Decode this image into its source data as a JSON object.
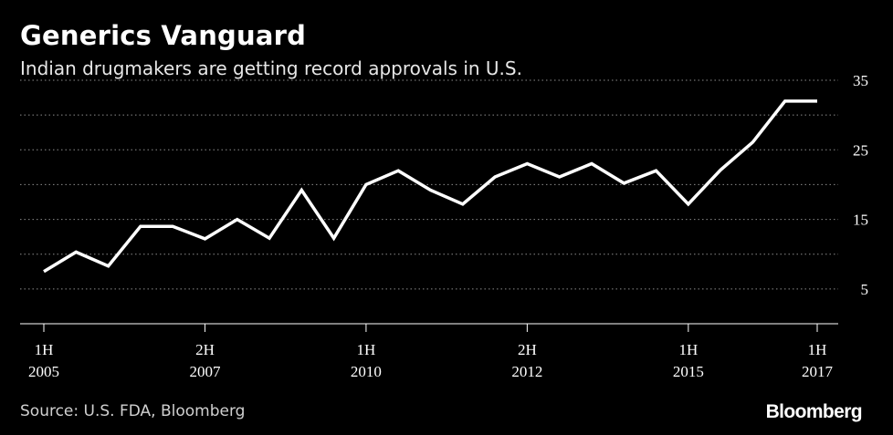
{
  "title": "Generics Vanguard",
  "subtitle": "Indian drugmakers are getting record approvals in U.S.",
  "source": "Source: U.S. FDA, Bloomberg",
  "brand": "Bloomberg",
  "colors": {
    "background": "#000000",
    "line": "#ffffff",
    "grid": "#8c8c8c",
    "text": "#ffffff"
  },
  "chart_data": {
    "type": "line",
    "title": "Generics Vanguard",
    "subtitle": "Indian drugmakers are getting record approvals in U.S.",
    "xlabel": "",
    "ylabel": "",
    "ylim": [
      0,
      35
    ],
    "y_ticks": [
      "35",
      "25",
      "15",
      "5"
    ],
    "grid": true,
    "y_axis_side": "right",
    "x_ticks": [
      {
        "line1": "1H",
        "line2": "2005",
        "index": 0
      },
      {
        "line1": "2H",
        "line2": "2007",
        "index": 5
      },
      {
        "line1": "1H",
        "line2": "2010",
        "index": 10
      },
      {
        "line1": "2H",
        "line2": "2012",
        "index": 15
      },
      {
        "line1": "1H",
        "line2": "2015",
        "index": 20
      },
      {
        "line1": "1H",
        "line2": "2017",
        "index": 24
      }
    ],
    "series": [
      {
        "values": [
          7.5,
          10.3,
          8.3,
          14,
          14,
          12.2,
          15,
          12.3,
          19.2,
          12.3,
          20,
          22,
          19.2,
          17.2,
          21.1,
          23,
          21.1,
          23,
          20.2,
          22,
          17.2,
          22.1,
          26.1,
          32,
          32
        ]
      }
    ]
  }
}
